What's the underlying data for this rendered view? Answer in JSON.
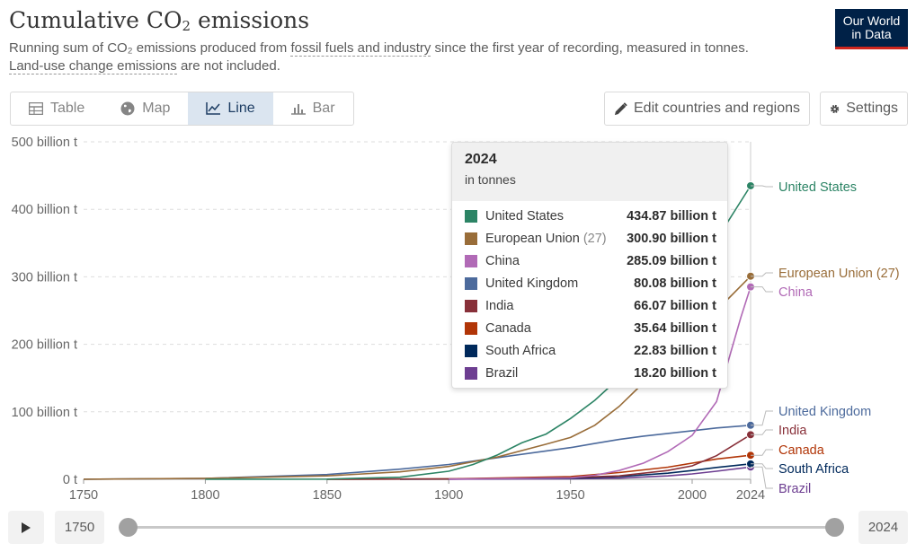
{
  "header": {
    "title_main": "Cumulative CO",
    "title_sub": "2",
    "title_end": " emissions",
    "subtitle_1": "Running sum of CO",
    "subtitle_2": "₂",
    "subtitle_3": " emissions produced from ",
    "subtitle_link1": "fossil fuels and industry",
    "subtitle_4": " since the first year of recording, measured in tonnes.",
    "subtitle_link2": "Land-use change emissions",
    "subtitle_5": " are not included.",
    "logo_line1": "Our World",
    "logo_line2": "in Data"
  },
  "tabs": [
    {
      "label": "Table",
      "icon": "table-icon",
      "active": false
    },
    {
      "label": "Map",
      "icon": "globe-icon",
      "active": false
    },
    {
      "label": "Line",
      "icon": "line-chart-icon",
      "active": true
    },
    {
      "label": "Bar",
      "icon": "bar-chart-icon",
      "active": false
    }
  ],
  "buttons": {
    "edit_label": "Edit countries and regions",
    "settings_label": "Settings"
  },
  "tooltip": {
    "year": "2024",
    "unit": "in tonnes",
    "rows": [
      {
        "name": "United States",
        "suffix": "",
        "value": "434.87 billion t",
        "color": "#2c8465"
      },
      {
        "name": "European Union",
        "suffix": "(27)",
        "value": "300.90 billion t",
        "color": "#996d39"
      },
      {
        "name": "China",
        "suffix": "",
        "value": "285.09 billion t",
        "color": "#b16ab6"
      },
      {
        "name": "United Kingdom",
        "suffix": "",
        "value": "80.08 billion t",
        "color": "#4c6a9c"
      },
      {
        "name": "India",
        "suffix": "",
        "value": "66.07 billion t",
        "color": "#883039"
      },
      {
        "name": "Canada",
        "suffix": "",
        "value": "35.64 billion t",
        "color": "#b13507"
      },
      {
        "name": "South Africa",
        "suffix": "",
        "value": "22.83 billion t",
        "color": "#00295b"
      },
      {
        "name": "Brazil",
        "suffix": "",
        "value": "18.20 billion t",
        "color": "#6d3e91"
      }
    ]
  },
  "timeline": {
    "start_year": "1750",
    "end_year": "2024"
  },
  "chart_data": {
    "type": "line",
    "title": "Cumulative CO₂ emissions",
    "ylabel": "",
    "xlabel": "",
    "xlim": [
      1750,
      2024
    ],
    "ylim": [
      0,
      500000000000
    ],
    "y_ticks": [
      {
        "value": 0,
        "label": "0 t"
      },
      {
        "value": 100000000000,
        "label": "100 billion t"
      },
      {
        "value": 200000000000,
        "label": "200 billion t"
      },
      {
        "value": 300000000000,
        "label": "300 billion t"
      },
      {
        "value": 400000000000,
        "label": "400 billion t"
      },
      {
        "value": 500000000000,
        "label": "500 billion t"
      }
    ],
    "x_ticks": [
      1750,
      1800,
      1850,
      1900,
      1950,
      2000,
      2024
    ],
    "grid": true,
    "series": [
      {
        "name": "United States",
        "color": "#2c8465",
        "x": [
          1800,
          1850,
          1880,
          1900,
          1910,
          1920,
          1930,
          1940,
          1950,
          1960,
          1970,
          1980,
          1990,
          2000,
          2010,
          2024
        ],
        "y": [
          0,
          300000000.0,
          3000000000.0,
          12000000000.0,
          22000000000.0,
          36000000000.0,
          54000000000.0,
          67000000000.0,
          90000000000.0,
          117000000000.0,
          150000000000.0,
          195000000000.0,
          240000000000.0,
          295000000000.0,
          355000000000.0,
          434870000000.0
        ]
      },
      {
        "name": "European Union",
        "suffix": "(27)",
        "color": "#996d39",
        "x": [
          1750,
          1800,
          1850,
          1880,
          1900,
          1920,
          1940,
          1950,
          1960,
          1970,
          1980,
          1990,
          2000,
          2010,
          2024
        ],
        "y": [
          100000000.0,
          1500000000.0,
          5000000000.0,
          11000000000.0,
          19000000000.0,
          33000000000.0,
          52000000000.0,
          62000000000.0,
          80000000000.0,
          108000000000.0,
          143000000000.0,
          180000000000.0,
          215000000000.0,
          250000000000.0,
          300900000000.0
        ]
      },
      {
        "name": "China",
        "color": "#b16ab6",
        "x": [
          1900,
          1950,
          1960,
          1970,
          1980,
          1990,
          2000,
          2010,
          2020,
          2024
        ],
        "y": [
          100000000.0,
          2000000000.0,
          6000000000.0,
          13000000000.0,
          24000000000.0,
          41000000000.0,
          65000000000.0,
          115000000000.0,
          240000000000.0,
          285090000000.0
        ]
      },
      {
        "name": "United Kingdom",
        "color": "#4c6a9c",
        "x": [
          1750,
          1800,
          1850,
          1880,
          1900,
          1920,
          1940,
          1950,
          1960,
          1970,
          1980,
          1990,
          2000,
          2010,
          2024
        ],
        "y": [
          100000000.0,
          1300000000.0,
          7000000000.0,
          15000000000.0,
          22000000000.0,
          32000000000.0,
          42000000000.0,
          47000000000.0,
          53000000000.0,
          59000000000.0,
          64000000000.0,
          68000000000.0,
          72000000000.0,
          76000000000.0,
          80080000000.0
        ]
      },
      {
        "name": "India",
        "color": "#883039",
        "x": [
          1850,
          1900,
          1950,
          1970,
          1990,
          2000,
          2010,
          2024
        ],
        "y": [
          0,
          500000000.0,
          2500000000.0,
          5000000000.0,
          13000000000.0,
          20000000000.0,
          35000000000.0,
          66070000000.0
        ]
      },
      {
        "name": "Canada",
        "color": "#b13507",
        "x": [
          1850,
          1900,
          1950,
          1970,
          1990,
          2000,
          2010,
          2024
        ],
        "y": [
          0,
          500000000.0,
          4000000000.0,
          10000000000.0,
          18000000000.0,
          24000000000.0,
          30000000000.0,
          35640000000.0
        ]
      },
      {
        "name": "South Africa",
        "color": "#00295b",
        "x": [
          1880,
          1900,
          1950,
          1970,
          1990,
          2000,
          2010,
          2024
        ],
        "y": [
          0,
          200000000.0,
          1500000000.0,
          4000000000.0,
          9000000000.0,
          13000000000.0,
          17500000000.0,
          22830000000.0
        ]
      },
      {
        "name": "Brazil",
        "color": "#6d3e91",
        "x": [
          1900,
          1950,
          1970,
          1990,
          2000,
          2010,
          2024
        ],
        "y": [
          0,
          600000000.0,
          1700000000.0,
          5000000000.0,
          8000000000.0,
          12000000000.0,
          18200000000.0
        ]
      }
    ],
    "end_labels": [
      {
        "name": "United States",
        "color": "#2c8465"
      },
      {
        "name": "European Union (27)",
        "color": "#996d39"
      },
      {
        "name": "China",
        "color": "#b16ab6"
      },
      {
        "name": "United Kingdom",
        "color": "#4c6a9c"
      },
      {
        "name": "India",
        "color": "#883039"
      },
      {
        "name": "Canada",
        "color": "#b13507"
      },
      {
        "name": "South Africa",
        "color": "#00295b"
      },
      {
        "name": "Brazil",
        "color": "#6d3e91"
      }
    ]
  }
}
